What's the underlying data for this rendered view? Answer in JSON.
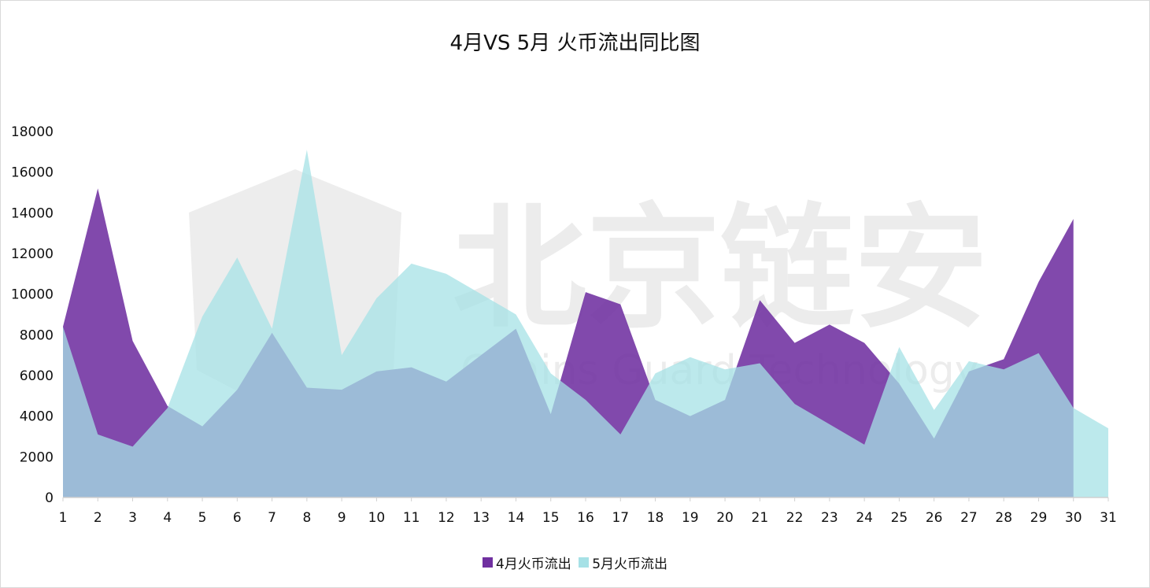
{
  "chart_data": {
    "type": "area",
    "title": "4月VS 5月 火币流出同比图",
    "xlabel": "",
    "ylabel": "",
    "categories": [
      "1",
      "2",
      "3",
      "4",
      "5",
      "6",
      "7",
      "8",
      "9",
      "10",
      "11",
      "12",
      "13",
      "14",
      "15",
      "16",
      "17",
      "18",
      "19",
      "20",
      "21",
      "22",
      "23",
      "24",
      "25",
      "26",
      "27",
      "28",
      "29",
      "30",
      "31"
    ],
    "ylim": [
      0,
      18000
    ],
    "yticks": [
      "0",
      "2000",
      "4000",
      "6000",
      "8000",
      "10000",
      "12000",
      "14000",
      "16000",
      "18000"
    ],
    "ytick_values": [
      0,
      2000,
      4000,
      6000,
      8000,
      10000,
      12000,
      14000,
      16000,
      18000
    ],
    "series": [
      {
        "name": "4月火币流出",
        "color": "#7030a0",
        "values": [
          8400,
          15200,
          7700,
          4500,
          3500,
          5300,
          8100,
          5400,
          5300,
          6200,
          6400,
          5700,
          7000,
          8300,
          4100,
          10100,
          9500,
          4800,
          4000,
          4800,
          9700,
          7600,
          8500,
          7600,
          5600,
          2900,
          6200,
          6800,
          10600,
          13700,
          null
        ]
      },
      {
        "name": "5月火币流出",
        "color": "#a6e1e6",
        "values": [
          8400,
          3100,
          2500,
          4400,
          8900,
          11800,
          8300,
          17100,
          7000,
          9800,
          11500,
          11000,
          10000,
          9000,
          6100,
          4800,
          3100,
          6100,
          6900,
          6300,
          6600,
          4600,
          3600,
          2600,
          7400,
          4300,
          6700,
          6300,
          7100,
          4400,
          3400
        ]
      }
    ],
    "legend_position": "bottom",
    "grid": false
  },
  "watermark": {
    "main_text": "北京链安",
    "sub_text": "Chains Guard Technology"
  }
}
